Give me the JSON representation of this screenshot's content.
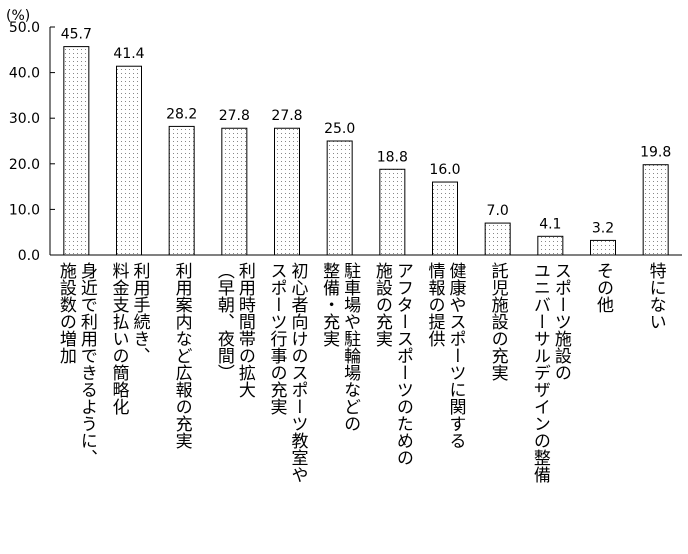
{
  "chart_data": {
    "type": "bar",
    "unit_label": "(%)",
    "ylim": [
      0,
      50
    ],
    "yticks": [
      "0.0",
      "10.0",
      "20.0",
      "30.0",
      "40.0",
      "50.0"
    ],
    "grid": false,
    "categories": [
      [
        "身近で利用できるように、",
        "施設数の増加"
      ],
      [
        "利用手続き、",
        "料金支払いの簡略化"
      ],
      [
        "利用案内など広報の充実"
      ],
      [
        "利用時間帯の拡大",
        "（早朝、夜間）"
      ],
      [
        "初心者向けのスポーツ教室や",
        "スポーツ行事の充実"
      ],
      [
        "駐車場や駐輪場などの",
        "整備・充実"
      ],
      [
        "アフタースポーツのための",
        "施設の充実"
      ],
      [
        "健康やスポーツに関する",
        "情報の提供"
      ],
      [
        "託児施設の充実"
      ],
      [
        "スポーツ施設の",
        "ユニバーサルデザインの整備"
      ],
      [
        "その他"
      ],
      [
        "特にない"
      ]
    ],
    "values": [
      45.7,
      41.4,
      28.2,
      27.8,
      27.8,
      25.0,
      18.8,
      16.0,
      7.0,
      4.1,
      3.2,
      19.8
    ],
    "value_labels": [
      "45.7",
      "41.4",
      "28.2",
      "27.8",
      "27.8",
      "25.0",
      "18.8",
      "16.0",
      "7.0",
      "4.1",
      "3.2",
      "19.8"
    ],
    "bar_fill": "#ffffff",
    "bar_pattern_color": "#888888",
    "axis_color": "#000000"
  }
}
